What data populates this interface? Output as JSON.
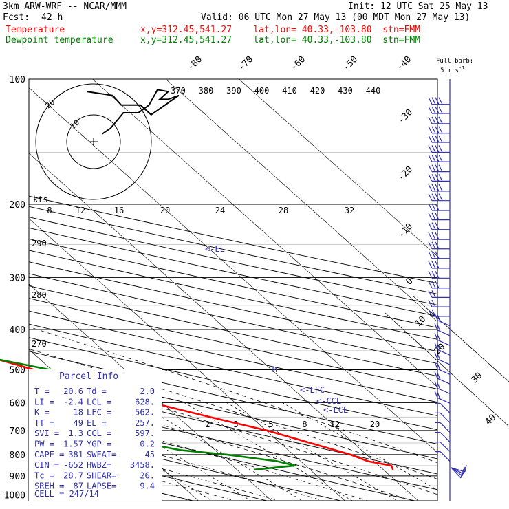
{
  "header": {
    "model": "3km ARW-WRF -- NCAR/MMM",
    "init": "Init: 12 UTC Sat 25 May 13",
    "fcst_label": "Fcst:",
    "fcst_hours": "42 h",
    "valid": "Valid: 06 UTC Mon 27 May 13 (00 MDT Mon 27 May 13)",
    "temp_label": "Temperature",
    "dew_label": "Dewpoint temperature",
    "temp_info": "x,y=312.45,541.27    lat,lon= 40.33,-103.80  stn=FMM",
    "dew_info": "x,y=312.45,541.27    lat,lon= 40.33,-103.80  stn=FMM",
    "barb_legend_1": "Full barb:",
    "barb_legend_2": "5 m s",
    "barb_legend_exp": "-1"
  },
  "parcel_info": {
    "title": "Parcel Info",
    "rows": [
      [
        "T    =",
        "20.6",
        "Td =",
        "2.0"
      ],
      [
        "LI   =",
        "-2.4",
        "LCL =",
        "628."
      ],
      [
        "K    =",
        "18",
        "LFC =",
        "562."
      ],
      [
        "TT   =",
        "49",
        "EL  =",
        "257."
      ],
      [
        "SVI  =",
        "1.3",
        "CCL =",
        "597."
      ],
      [
        "PW   =",
        "1.57",
        "YGP =",
        "0.2"
      ],
      [
        "CAPE =",
        "381",
        "SWEAT=",
        "45"
      ],
      [
        "CIN  =",
        "-652",
        "HWBZ=",
        "3458."
      ],
      [
        "Tc   =",
        "28.7",
        "SHEAR=",
        "26."
      ],
      [
        "SREH =",
        "87",
        "LAPSE=",
        "9.4"
      ]
    ],
    "cell": "CELL = 247/14"
  },
  "levels": {
    "el": "<-EL",
    "lfc": "<-LFC",
    "ccl": "<-CCL",
    "lcl": "<-LCL",
    "m_marker": "M"
  },
  "hodograph": {
    "ring_label_inner": "10",
    "ring_label_outer": "20",
    "kts_label": "kts"
  },
  "colors": {
    "temperature": "#ff0000",
    "dewpoint": "#008000",
    "wind": "#3030b0"
  },
  "chart_data": {
    "type": "skew-t log-p",
    "title": "3km ARW-WRF -- NCAR/MMM",
    "ylabel": "Pressure (hPa)",
    "pressure_ticks": [
      100,
      200,
      300,
      400,
      500,
      600,
      700,
      800,
      900,
      1000
    ],
    "isotherm_labels": [
      -80,
      -70,
      -60,
      -50,
      -40,
      -30,
      -20,
      -10,
      0,
      10,
      20,
      30,
      40
    ],
    "theta_labels": [
      370,
      380,
      390,
      400,
      410,
      420,
      430,
      440
    ],
    "mixing_ratio_labels_top": [
      8,
      12,
      16,
      20,
      24,
      28,
      32
    ],
    "mixing_ratio_labels_low": [
      2,
      3,
      5,
      8,
      12,
      20
    ],
    "dry_adiabat_labels_left": [
      290,
      280,
      270
    ],
    "series": [
      {
        "name": "Temperature",
        "points": [
          [
            870,
            21.3
          ],
          [
            850,
            21.7
          ],
          [
            830,
            19.2
          ],
          [
            800,
            17.8
          ],
          [
            750,
            14.1
          ],
          [
            700,
            10.1
          ],
          [
            650,
            4.4
          ],
          [
            600,
            -1.4
          ],
          [
            550,
            -7.1
          ],
          [
            500,
            -12.4
          ],
          [
            450,
            -18.6
          ],
          [
            400,
            -25.4
          ],
          [
            350,
            -33.1
          ],
          [
            300,
            -42.0
          ],
          [
            250,
            -51.8
          ],
          [
            210,
            -58.6
          ],
          [
            200,
            -59.8
          ],
          [
            180,
            -61.1
          ],
          [
            160,
            -61.2
          ],
          [
            150,
            -60.8
          ],
          [
            140,
            -61.4
          ],
          [
            130,
            -62.9
          ],
          [
            120,
            -64.4
          ],
          [
            110,
            -64.2
          ],
          [
            100,
            -64.6
          ]
        ]
      },
      {
        "name": "Dewpoint temperature",
        "points": [
          [
            870,
            2.3
          ],
          [
            850,
            8.6
          ],
          [
            830,
            6.8
          ],
          [
            800,
            0.9
          ],
          [
            780,
            -4.8
          ],
          [
            750,
            -8.6
          ],
          [
            700,
            -11.9
          ],
          [
            660,
            -11.4
          ],
          [
            620,
            -8.0
          ],
          [
            580,
            -4.5
          ],
          [
            550,
            -4.9
          ],
          [
            520,
            -7.1
          ],
          [
            500,
            -10.2
          ],
          [
            470,
            -16.2
          ],
          [
            450,
            -24.1
          ],
          [
            420,
            -35.3
          ],
          [
            400,
            -41.1
          ],
          [
            350,
            -46.1
          ],
          [
            320,
            -48.1
          ],
          [
            300,
            -48.7
          ],
          [
            280,
            -55.9
          ],
          [
            250,
            -62.3
          ],
          [
            200,
            -70.3
          ],
          [
            180,
            -73.7
          ],
          [
            160,
            -77.3
          ],
          [
            140,
            -81.2
          ],
          [
            120,
            -85.8
          ],
          [
            110,
            -87.8
          ],
          [
            100,
            -88.6
          ]
        ]
      }
    ],
    "hodograph_kts": [
      [
        4,
        4
      ],
      [
        8,
        7
      ],
      [
        14,
        15
      ],
      [
        19,
        15
      ],
      [
        21,
        15
      ],
      [
        26,
        19
      ],
      [
        30,
        27
      ],
      [
        35,
        26
      ],
      [
        31,
        22
      ],
      [
        35,
        22
      ],
      [
        40,
        24
      ],
      [
        27,
        14
      ],
      [
        22,
        19
      ],
      [
        13,
        19
      ],
      [
        9,
        24
      ],
      [
        -3,
        26
      ]
    ]
  }
}
